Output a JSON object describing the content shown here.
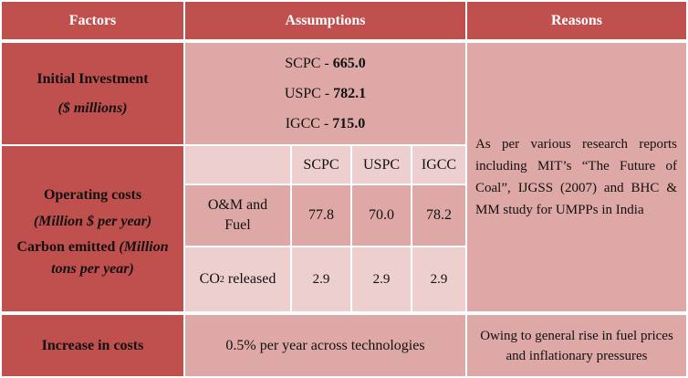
{
  "header": {
    "factors": "Factors",
    "assumptions": "Assumptions",
    "reasons": "Reasons"
  },
  "investment": {
    "label": "Initial Investment",
    "unit": "($ millions)",
    "items": [
      {
        "name": "SCPC",
        "sep": " - ",
        "value": "665.0"
      },
      {
        "name": "USPC",
        "sep": " - ",
        "value": "782.1"
      },
      {
        "name": "IGCC",
        "sep": " - ",
        "value": "715.0"
      }
    ]
  },
  "operating": {
    "label_line1": "Operating costs",
    "label_line2": "(Million $ per year)",
    "carbon_label": "Carbon emitted",
    "carbon_unit_a": "(Million",
    "carbon_unit_b": "tons per year)",
    "columns": [
      "SCPC",
      "USPC",
      "IGCC"
    ],
    "rows": [
      {
        "label_a": "O&M and",
        "label_b": "Fuel",
        "values": [
          "77.8",
          "70.0",
          "78.2"
        ]
      },
      {
        "label_pre": "CO",
        "label_sub": "2",
        "label_post": " released",
        "values": [
          "2.9",
          "2.9",
          "2.9"
        ]
      }
    ]
  },
  "reasons": {
    "research": "As per various research reports including MIT’s “The Future of Coal”, IJGSS (2007) and BHC & MM study for UMPPs in India",
    "increase": "Owing to general rise in fuel prices and inflationary pressures"
  },
  "increase": {
    "label": "Increase in costs",
    "assumption": "0.5% per year across technologies"
  }
}
